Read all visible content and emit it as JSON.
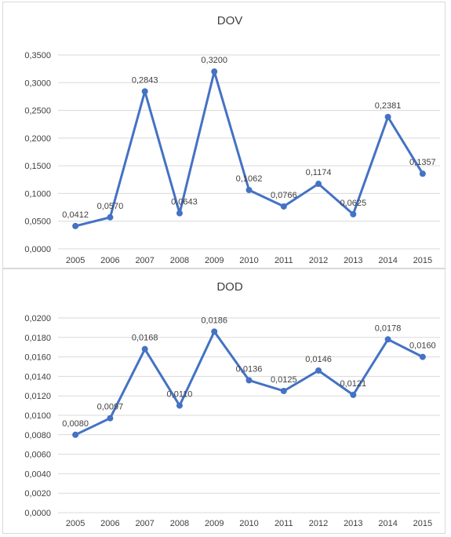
{
  "chart_data": [
    {
      "type": "line",
      "title": "DOV",
      "categories": [
        "2005",
        "2006",
        "2007",
        "2008",
        "2009",
        "2010",
        "2011",
        "2012",
        "2013",
        "2014",
        "2015"
      ],
      "values": [
        0.0412,
        0.057,
        0.2843,
        0.0643,
        0.32,
        0.1062,
        0.0766,
        0.1174,
        0.0625,
        0.2381,
        0.1357
      ],
      "data_labels": [
        "0,0412",
        "0,0570",
        "0,2843",
        "0,0643",
        "0,3200",
        "0,1062",
        "0,0766",
        "0,1174",
        "0,0625",
        "0,2381",
        "0,1357"
      ],
      "y_ticks": [
        "0,0000",
        "0,0500",
        "0,1000",
        "0,1500",
        "0,2000",
        "0,2500",
        "0,3000",
        "0,3500"
      ],
      "ylim": [
        0,
        0.35
      ],
      "grid": true,
      "color": "#4472c4"
    },
    {
      "type": "line",
      "title": "DOD",
      "categories": [
        "2005",
        "2006",
        "2007",
        "2008",
        "2009",
        "2010",
        "2011",
        "2012",
        "2013",
        "2014",
        "2015"
      ],
      "values": [
        0.008,
        0.0097,
        0.0168,
        0.011,
        0.0186,
        0.0136,
        0.0125,
        0.0146,
        0.0121,
        0.0178,
        0.016
      ],
      "data_labels": [
        "0,0080",
        "0,0097",
        "0,0168",
        "0,0110",
        "0,0186",
        "0,0136",
        "0,0125",
        "0,0146",
        "0,0121",
        "0,0178",
        "0,0160"
      ],
      "y_ticks": [
        "0,0000",
        "0,0020",
        "0,0040",
        "0,0060",
        "0,0080",
        "0,0100",
        "0,0120",
        "0,0140",
        "0,0160",
        "0,0180",
        "0,0200"
      ],
      "ylim": [
        0,
        0.02
      ],
      "grid": true,
      "color": "#4472c4"
    }
  ]
}
